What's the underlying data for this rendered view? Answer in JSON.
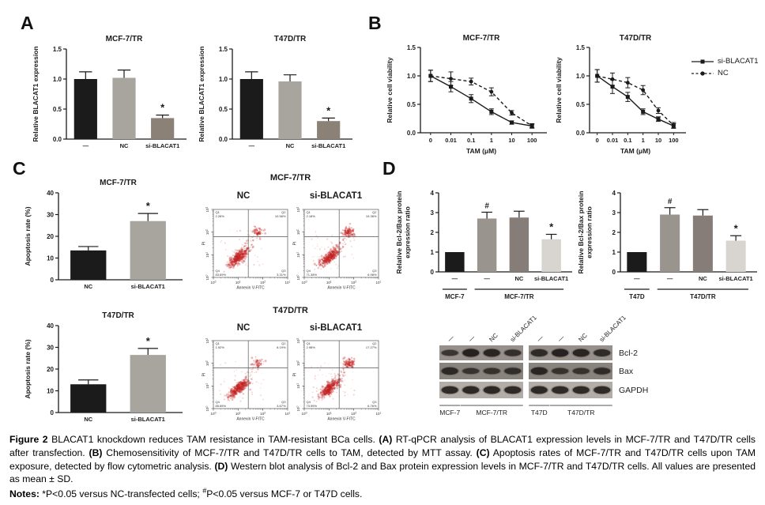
{
  "panels": {
    "a": {
      "label": "A"
    },
    "b": {
      "label": "B",
      "legend": [
        {
          "label": "si-BLACAT1",
          "marker": "square",
          "line": "solid"
        },
        {
          "label": "NC",
          "marker": "circle",
          "line": "dashed"
        }
      ]
    },
    "c": {
      "label": "C",
      "flow_groups": [
        {
          "title": "MCF-7/TR",
          "cols": [
            {
              "label": "NC"
            },
            {
              "label": "si-BLACAT1"
            }
          ]
        },
        {
          "title": "T47D/TR",
          "cols": [
            {
              "label": "NC"
            },
            {
              "label": "si-BLACAT1"
            }
          ]
        }
      ]
    },
    "d": {
      "label": "D",
      "blot": {
        "lane_labels": [
          "—",
          "—",
          "NC",
          "si-BLACAT1",
          "—",
          "—",
          "NC",
          "si-BLACAT1"
        ],
        "row_labels": [
          "Bcl-2",
          "Bax",
          "GAPDH"
        ],
        "membrane_colors": [
          "#97908a",
          "#89837d",
          "#b2ada7"
        ],
        "band_intensity": {
          "bcl2": [
            0.55,
            1.0,
            0.95,
            0.7,
            0.85,
            1.0,
            0.95,
            0.8
          ],
          "bax": [
            0.85,
            0.55,
            0.6,
            0.7,
            0.9,
            0.6,
            0.6,
            0.75
          ],
          "gapdh": [
            0.9,
            0.95,
            0.95,
            0.9,
            0.95,
            0.9,
            0.9,
            0.9
          ]
        },
        "groups": [
          {
            "label": "MCF-7",
            "lanes": [
              0,
              0
            ]
          },
          {
            "label": "MCF-7/TR",
            "lanes": [
              1,
              3
            ]
          },
          {
            "label": "T47D",
            "lanes": [
              4,
              4
            ]
          },
          {
            "label": "T47D/TR",
            "lanes": [
              5,
              7
            ]
          }
        ]
      }
    }
  },
  "chart_data": [
    {
      "id": "a_mcf7",
      "type": "bar",
      "title": "MCF-7/TR",
      "ylabel": [
        "Relative BLACAT1 expression"
      ],
      "ylim": [
        0,
        1.5
      ],
      "yticks": [
        0,
        0.5,
        1,
        1.5
      ],
      "ytick_labels": [
        "0.0",
        "0.5",
        "1.0",
        "1.5"
      ],
      "categories": [
        "—",
        "NC",
        "si-BLACAT1"
      ],
      "values": [
        1.0,
        1.02,
        0.35
      ],
      "errors": [
        0.12,
        0.13,
        0.05
      ],
      "colors": [
        "#1b1b1b",
        "#a8a49e",
        "#8b8177"
      ],
      "annotations": [
        {
          "index": 2,
          "symbol": "*"
        }
      ]
    },
    {
      "id": "a_t47d",
      "type": "bar",
      "title": "T47D/TR",
      "ylabel": [
        "Relative BLACAT1 expression"
      ],
      "ylim": [
        0,
        1.5
      ],
      "yticks": [
        0,
        0.5,
        1,
        1.5
      ],
      "ytick_labels": [
        "0.0",
        "0.5",
        "1.0",
        "1.5"
      ],
      "categories": [
        "—",
        "NC",
        "si-BLACAT1"
      ],
      "values": [
        1.0,
        0.96,
        0.3
      ],
      "errors": [
        0.12,
        0.11,
        0.05
      ],
      "colors": [
        "#1b1b1b",
        "#a8a49e",
        "#8b8177"
      ],
      "annotations": [
        {
          "index": 2,
          "symbol": "*"
        }
      ]
    },
    {
      "id": "b_mcf7",
      "type": "line",
      "title": "MCF-7/TR",
      "xlabel": "TAM (μM)",
      "ylabel": [
        "Relative cell viability"
      ],
      "ylim": [
        0,
        1.5
      ],
      "yticks": [
        0,
        0.5,
        1,
        1.5
      ],
      "ytick_labels": [
        "0.0",
        "0.5",
        "1.0",
        "1.5"
      ],
      "categories": [
        "0",
        "0.01",
        "0.1",
        "1",
        "10",
        "100"
      ],
      "series": [
        {
          "name": "si-BLACAT1",
          "marker": "square",
          "dash": null,
          "values": [
            1.0,
            0.81,
            0.6,
            0.37,
            0.18,
            0.12
          ],
          "errors": [
            0.1,
            0.09,
            0.07,
            0.05,
            0.03,
            0.03
          ]
        },
        {
          "name": "NC",
          "marker": "circle",
          "dash": "4,3",
          "values": [
            1.0,
            0.95,
            0.9,
            0.72,
            0.35,
            0.12
          ],
          "errors": [
            0.1,
            0.12,
            0.06,
            0.07,
            0.04,
            0.04
          ]
        }
      ]
    },
    {
      "id": "b_t47d",
      "type": "line",
      "title": "T47D/TR",
      "xlabel": "TAM (μM)",
      "ylabel": [
        "Relative cell viability"
      ],
      "ylim": [
        0,
        1.5
      ],
      "yticks": [
        0,
        0.5,
        1,
        1.5
      ],
      "ytick_labels": [
        "0.0",
        "0.5",
        "1.0",
        "1.5"
      ],
      "categories": [
        "0",
        "0.01",
        "0.1",
        "1",
        "10",
        "100"
      ],
      "series": [
        {
          "name": "si-BLACAT1",
          "marker": "square",
          "dash": null,
          "values": [
            1.0,
            0.81,
            0.63,
            0.37,
            0.24,
            0.12
          ],
          "errors": [
            0.11,
            0.12,
            0.08,
            0.05,
            0.04,
            0.04
          ]
        },
        {
          "name": "NC",
          "marker": "circle",
          "dash": "4,3",
          "values": [
            1.0,
            0.94,
            0.88,
            0.75,
            0.39,
            0.13
          ],
          "errors": [
            0.11,
            0.11,
            0.09,
            0.08,
            0.05,
            0.05
          ]
        }
      ]
    },
    {
      "id": "c_mcf7",
      "type": "bar",
      "title": "MCF-7/TR",
      "ylabel": [
        "Apoptosis rate (%)"
      ],
      "ylim": [
        0,
        40
      ],
      "yticks": [
        0,
        10,
        20,
        30,
        40
      ],
      "ytick_labels": [
        "0",
        "10",
        "20",
        "30",
        "40"
      ],
      "categories": [
        "NC",
        "si-BLACAT1"
      ],
      "values": [
        13.5,
        27
      ],
      "errors": [
        1.8,
        3.5
      ],
      "colors": [
        "#1b1b1b",
        "#a8a49e"
      ],
      "annotations": [
        {
          "index": 1,
          "symbol": "*"
        }
      ]
    },
    {
      "id": "c_t47d",
      "type": "bar",
      "title": "T47D/TR",
      "ylabel": [
        "Apoptosis rate (%)"
      ],
      "ylim": [
        0,
        40
      ],
      "yticks": [
        0,
        10,
        20,
        30,
        40
      ],
      "ytick_labels": [
        "0",
        "10",
        "20",
        "30",
        "40"
      ],
      "categories": [
        "NC",
        "si-BLACAT1"
      ],
      "values": [
        13,
        26.5
      ],
      "errors": [
        2,
        3
      ],
      "colors": [
        "#1b1b1b",
        "#a8a49e"
      ],
      "annotations": [
        {
          "index": 1,
          "symbol": "*"
        }
      ]
    },
    {
      "id": "flow_mcf7_nc",
      "type": "flow",
      "seed": 7,
      "xlabel": "Annexin V-FITC",
      "ylabel": "PI",
      "tick_exponents": [
        0,
        1,
        2,
        3
      ],
      "quadrants": {
        "q1": "2.26%",
        "q2": "10.56%",
        "q3": "3.31%",
        "q4": "83.69%"
      }
    },
    {
      "id": "flow_mcf7_si",
      "type": "flow",
      "seed": 13,
      "xlabel": "Annexin V-FITC",
      "ylabel": "PI",
      "tick_exponents": [
        0,
        1,
        2,
        3
      ],
      "quadrants": {
        "q1": "2.18%",
        "q2": "19.36%",
        "q3": "6.98%",
        "q4": "71.38%"
      }
    },
    {
      "id": "flow_t47d_nc",
      "type": "flow",
      "seed": 21,
      "xlabel": "Annexin V-FITC",
      "ylabel": "PI",
      "tick_exponents": [
        0,
        1,
        2,
        3
      ],
      "quadrants": {
        "q1": "1.92%",
        "q2": "8.19%",
        "q3": "3.67%",
        "q4": "85.65%"
      }
    },
    {
      "id": "flow_t47d_si",
      "type": "flow",
      "seed": 29,
      "xlabel": "Annexin V-FITC",
      "ylabel": "PI",
      "tick_exponents": [
        0,
        1,
        2,
        3
      ],
      "quadrants": {
        "q1": "2.98%",
        "q2": "17.27%",
        "q3": "6.76%",
        "q4": "73.95%"
      }
    },
    {
      "id": "d_mcf7",
      "type": "bar",
      "title": "",
      "ylabel": [
        "Relative Bcl-2/Bax protein",
        "expression ratio"
      ],
      "ylim": [
        0,
        4
      ],
      "yticks": [
        0,
        1,
        2,
        3,
        4
      ],
      "ytick_labels": [
        "0",
        "1",
        "2",
        "3",
        "4"
      ],
      "categories": [
        "—",
        "—",
        "NC",
        "si-BLACAT1"
      ],
      "values": [
        1.0,
        2.7,
        2.75,
        1.65
      ],
      "errors": [
        0,
        0.32,
        0.32,
        0.25
      ],
      "colors": [
        "#1b1b1b",
        "#9a948f",
        "#867c78",
        "#d8d4cf"
      ],
      "annotations": [
        {
          "index": 1,
          "symbol": "#"
        },
        {
          "index": 3,
          "symbol": "*"
        }
      ],
      "groups": [
        {
          "label": "MCF-7",
          "from": 0,
          "to": 0
        },
        {
          "label": "MCF-7/TR",
          "from": 1,
          "to": 3
        }
      ]
    },
    {
      "id": "d_t47d",
      "type": "bar",
      "title": "",
      "ylabel": [
        "Relative Bcl-2/Bax protein",
        "expression ratio"
      ],
      "ylim": [
        0,
        4
      ],
      "yticks": [
        0,
        1,
        2,
        3,
        4
      ],
      "ytick_labels": [
        "0",
        "1",
        "2",
        "3",
        "4"
      ],
      "categories": [
        "—",
        "—",
        "NC",
        "si-BLACAT1"
      ],
      "values": [
        1.0,
        2.9,
        2.85,
        1.58
      ],
      "errors": [
        0,
        0.35,
        0.3,
        0.25
      ],
      "colors": [
        "#1b1b1b",
        "#9a948f",
        "#867c78",
        "#d8d4cf"
      ],
      "annotations": [
        {
          "index": 1,
          "symbol": "#"
        },
        {
          "index": 3,
          "symbol": "*"
        }
      ],
      "groups": [
        {
          "label": "T47D",
          "from": 0,
          "to": 0
        },
        {
          "label": "T47D/TR",
          "from": 1,
          "to": 3
        }
      ]
    }
  ],
  "caption": {
    "fig_label": "Figure 2",
    "s1": " BLACAT1 knockdown reduces TAM resistance in TAM-resistant BCa cells. ",
    "a_tag": "(A)",
    "s2": " RT-qPCR analysis of BLACAT1 expression levels in MCF-7/TR and T47D/TR cells after transfection. ",
    "b_tag": "(B)",
    "s3": " Chemosensitivity of MCF-7/TR and T47D/TR cells to TAM, detected by MTT assay. ",
    "c_tag": "(C)",
    "s4": " Apoptosis rates of MCF-7/TR and T47D/TR cells upon TAM exposure, detected by flow cytometric analysis. ",
    "d_tag": "(D)",
    "s5": " Western blot analysis of Bcl-2 and Bax protein expression levels in MCF-7/TR and T47D/TR cells. All values are presented as mean ± SD.",
    "notes_label": "Notes:",
    "notes_1": " *P<0.05 versus NC-transfected cells; ",
    "notes_sup": "#",
    "notes_2": "P<0.05 versus MCF-7 or T47D cells."
  }
}
